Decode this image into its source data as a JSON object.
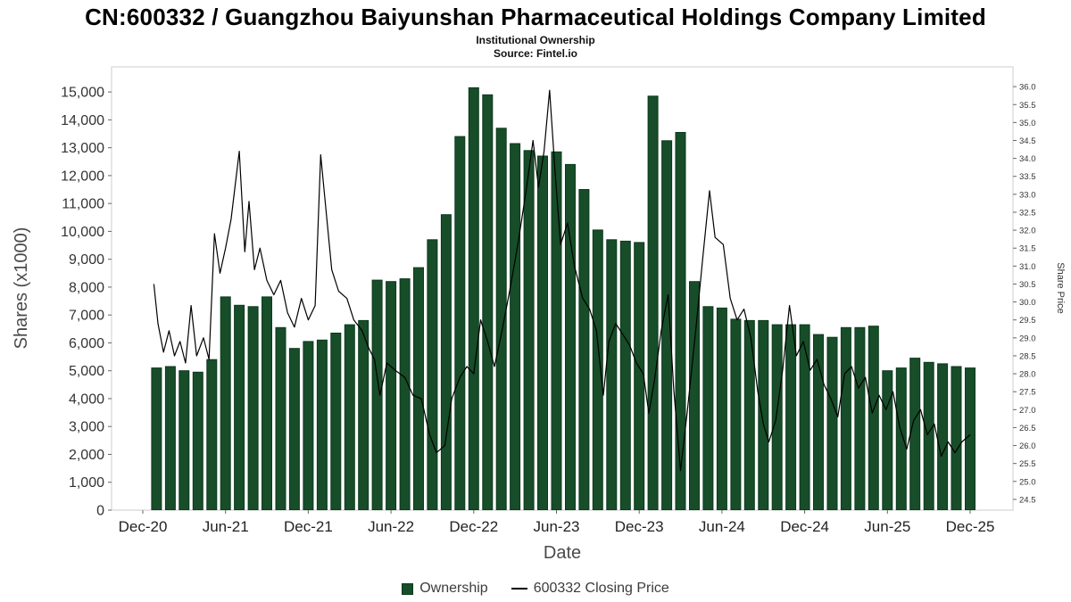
{
  "chart_data": {
    "type": "bar+line",
    "title": "CN:600332 / Guangzhou Baiyunshan Pharmaceutical Holdings Company Limited",
    "subtitle": "Institutional Ownership",
    "source": "Source: Fintel.io",
    "xlabel": "Date",
    "ylabel_left": "Shares (x1000)",
    "ylabel_right": "Share Price",
    "grid": false,
    "legend_position": "bottom",
    "colors": {
      "bar": "#174d29",
      "bar_edge": "#0d3a1c",
      "line": "#000000",
      "plot_border": "#cccccc",
      "tick": "#666666"
    },
    "x_ticks": [
      {
        "label": "Dec-20",
        "month": 0
      },
      {
        "label": "Jun-21",
        "month": 6
      },
      {
        "label": "Dec-21",
        "month": 12
      },
      {
        "label": "Jun-22",
        "month": 18
      },
      {
        "label": "Dec-22",
        "month": 24
      },
      {
        "label": "Jun-23",
        "month": 30
      },
      {
        "label": "Dec-23",
        "month": 36
      },
      {
        "label": "Jun-24",
        "month": 42
      },
      {
        "label": "Dec-24",
        "month": 48
      },
      {
        "label": "Jun-25",
        "month": 54
      },
      {
        "label": "Dec-25",
        "month": 60
      }
    ],
    "y_left_ticks": [
      0,
      1000,
      2000,
      3000,
      4000,
      5000,
      6000,
      7000,
      8000,
      9000,
      10000,
      11000,
      12000,
      13000,
      14000,
      15000
    ],
    "y_left_plot_max": 15900,
    "y_right_ticks": [
      24.5,
      25.0,
      25.5,
      26.0,
      26.5,
      27.0,
      27.5,
      28.0,
      28.5,
      29.0,
      29.5,
      30.0,
      30.5,
      31.0,
      31.5,
      32.0,
      32.5,
      33.0,
      33.5,
      34.0,
      34.5,
      35.0,
      35.5,
      36.0
    ],
    "y_right_plot_range": [
      24.2,
      36.55
    ],
    "series": [
      {
        "name": "Ownership",
        "type": "bar",
        "axis": "left",
        "start_month": 1,
        "first_bar_period": "Jan-21",
        "values": [
          5100,
          5150,
          5000,
          4950,
          5400,
          7650,
          7350,
          7300,
          7650,
          6550,
          5800,
          6050,
          6100,
          6350,
          6650,
          6800,
          8250,
          8200,
          8300,
          8700,
          9700,
          10600,
          13400,
          15150,
          14900,
          13700,
          13150,
          12900,
          12700,
          12850,
          12400,
          11500,
          10050,
          9700,
          9650,
          9600,
          14850,
          13250,
          13550,
          8200,
          7300,
          7250,
          6850,
          6800,
          6800,
          6650,
          6650,
          6650,
          6300,
          6200,
          6550,
          6550,
          6600,
          5000,
          5100,
          5450,
          5300,
          5250,
          5150,
          5100
        ]
      },
      {
        "name": "600332 Closing Price",
        "type": "line",
        "axis": "right",
        "points": [
          [
            0.8,
            30.5
          ],
          [
            1.1,
            29.4
          ],
          [
            1.5,
            28.6
          ],
          [
            1.9,
            29.2
          ],
          [
            2.3,
            28.5
          ],
          [
            2.7,
            28.9
          ],
          [
            3.1,
            28.3
          ],
          [
            3.5,
            29.9
          ],
          [
            3.9,
            28.5
          ],
          [
            4.4,
            29.0
          ],
          [
            4.8,
            28.4
          ],
          [
            5.2,
            31.9
          ],
          [
            5.6,
            30.8
          ],
          [
            6.0,
            31.5
          ],
          [
            6.4,
            32.3
          ],
          [
            7.0,
            34.2
          ],
          [
            7.4,
            31.4
          ],
          [
            7.7,
            32.8
          ],
          [
            8.1,
            30.9
          ],
          [
            8.5,
            31.5
          ],
          [
            9.0,
            30.6
          ],
          [
            9.5,
            30.2
          ],
          [
            10.0,
            30.6
          ],
          [
            10.5,
            29.7
          ],
          [
            11.0,
            29.3
          ],
          [
            11.5,
            30.1
          ],
          [
            12.0,
            29.5
          ],
          [
            12.5,
            29.9
          ],
          [
            12.9,
            34.1
          ],
          [
            13.3,
            32.5
          ],
          [
            13.7,
            30.9
          ],
          [
            14.2,
            30.3
          ],
          [
            14.8,
            30.1
          ],
          [
            15.3,
            29.5
          ],
          [
            15.9,
            29.2
          ],
          [
            16.4,
            28.7
          ],
          [
            16.8,
            28.4
          ],
          [
            17.2,
            27.4
          ],
          [
            17.7,
            28.3
          ],
          [
            18.3,
            28.1
          ],
          [
            19.0,
            27.9
          ],
          [
            19.6,
            27.4
          ],
          [
            20.2,
            27.3
          ],
          [
            20.8,
            26.3
          ],
          [
            21.3,
            25.8
          ],
          [
            21.9,
            26.0
          ],
          [
            22.4,
            27.3
          ],
          [
            23.0,
            27.9
          ],
          [
            23.5,
            28.2
          ],
          [
            24.0,
            28.0
          ],
          [
            24.5,
            29.5
          ],
          [
            25.0,
            28.9
          ],
          [
            25.5,
            28.2
          ],
          [
            26.0,
            29.1
          ],
          [
            26.6,
            30.3
          ],
          [
            27.2,
            31.6
          ],
          [
            27.8,
            33.1
          ],
          [
            28.3,
            34.5
          ],
          [
            28.7,
            33.2
          ],
          [
            29.1,
            34.2
          ],
          [
            29.5,
            35.9
          ],
          [
            29.9,
            33.6
          ],
          [
            30.3,
            31.6
          ],
          [
            30.8,
            32.2
          ],
          [
            31.3,
            31.0
          ],
          [
            31.9,
            30.1
          ],
          [
            32.4,
            29.8
          ],
          [
            32.9,
            29.2
          ],
          [
            33.4,
            27.4
          ],
          [
            33.8,
            28.9
          ],
          [
            34.3,
            29.4
          ],
          [
            34.8,
            29.1
          ],
          [
            35.3,
            28.8
          ],
          [
            35.8,
            28.3
          ],
          [
            36.3,
            28.0
          ],
          [
            36.7,
            26.9
          ],
          [
            37.1,
            27.8
          ],
          [
            37.6,
            29.2
          ],
          [
            38.1,
            30.2
          ],
          [
            38.5,
            27.6
          ],
          [
            39.0,
            25.3
          ],
          [
            39.5,
            27.0
          ],
          [
            40.1,
            29.2
          ],
          [
            40.6,
            31.2
          ],
          [
            41.1,
            33.1
          ],
          [
            41.5,
            31.8
          ],
          [
            42.1,
            31.6
          ],
          [
            42.6,
            30.1
          ],
          [
            43.1,
            29.5
          ],
          [
            43.6,
            29.8
          ],
          [
            44.1,
            29.0
          ],
          [
            44.6,
            27.5
          ],
          [
            45.0,
            26.6
          ],
          [
            45.4,
            26.1
          ],
          [
            45.9,
            26.7
          ],
          [
            46.4,
            28.1
          ],
          [
            46.9,
            29.9
          ],
          [
            47.4,
            28.5
          ],
          [
            47.9,
            28.9
          ],
          [
            48.4,
            28.1
          ],
          [
            48.9,
            28.4
          ],
          [
            49.4,
            27.7
          ],
          [
            49.9,
            27.3
          ],
          [
            50.4,
            26.8
          ],
          [
            50.9,
            28.0
          ],
          [
            51.4,
            28.2
          ],
          [
            51.9,
            27.6
          ],
          [
            52.4,
            27.9
          ],
          [
            52.9,
            26.9
          ],
          [
            53.4,
            27.4
          ],
          [
            53.9,
            27.0
          ],
          [
            54.4,
            27.5
          ],
          [
            54.9,
            26.5
          ],
          [
            55.4,
            25.9
          ],
          [
            55.9,
            26.7
          ],
          [
            56.4,
            27.0
          ],
          [
            56.9,
            26.3
          ],
          [
            57.4,
            26.6
          ],
          [
            57.9,
            25.7
          ],
          [
            58.4,
            26.1
          ],
          [
            58.9,
            25.8
          ],
          [
            59.4,
            26.1
          ],
          [
            60.0,
            26.3
          ]
        ]
      }
    ],
    "legend": [
      {
        "label": "Ownership",
        "swatch": "square",
        "color": "#174d29"
      },
      {
        "label": "600332 Closing Price",
        "swatch": "line",
        "color": "#000000"
      }
    ]
  }
}
